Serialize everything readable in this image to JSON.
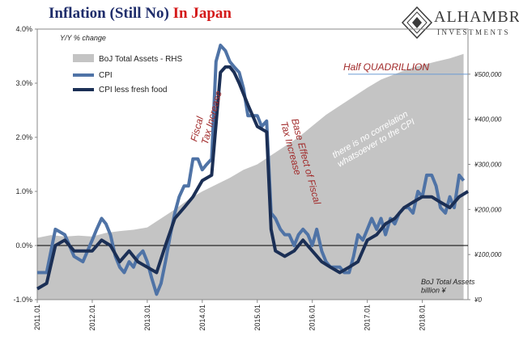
{
  "header": {
    "title_part1": "Inflation (Still No)",
    "title_part2": "In Japan",
    "brand_name": "ALHAMBRA",
    "brand_subtitle": "INVESTMENTS"
  },
  "chart_data": {
    "type": "line",
    "ylabel_left": "Y/Y % change",
    "ylabel_right": "BoJ Total Assets\nbillion ¥",
    "ylim_left": [
      -1.0,
      4.0
    ],
    "ylim_right": [
      0,
      600000
    ],
    "y_ticks_left": [
      "-1.0%",
      "0.0%",
      "1.0%",
      "2.0%",
      "3.0%",
      "4.0%"
    ],
    "y_ticks_right": [
      "¥0",
      "¥100,000",
      "¥200,000",
      "¥300,000",
      "¥400,000",
      "¥500,000"
    ],
    "x_ticks": [
      "2011.01",
      "2012.01",
      "2013.01",
      "2014.01",
      "2015.01",
      "2016.01",
      "2017.01",
      "2018.01"
    ],
    "legend": {
      "placement": "top-left",
      "items": [
        "BoJ Total Assets - RHS",
        "CPI",
        "CPI less fresh food"
      ]
    },
    "annotations": [
      "Half QUADRILLION",
      "Fiscal\nTax Increase",
      "Base Effect of Fiscal\nTax Increase",
      "there is no correlation\nwhatsoever to the CPI"
    ],
    "reference_line_rhs": 500000,
    "colors": {
      "assets": "#c4c4c4",
      "cpi": "#4f73a6",
      "core_cpi": "#1b2f55",
      "annotation_red": "#a12a2a",
      "reference_line": "#6a9bd3"
    },
    "series": [
      {
        "name": "BoJ Total Assets - RHS",
        "axis": "right",
        "x": [
          2011.0,
          2011.25,
          2011.5,
          2011.75,
          2012.0,
          2012.25,
          2012.5,
          2012.75,
          2013.0,
          2013.25,
          2013.5,
          2013.75,
          2014.0,
          2014.25,
          2014.5,
          2014.75,
          2015.0,
          2015.25,
          2015.5,
          2015.75,
          2016.0,
          2016.25,
          2016.5,
          2016.75,
          2017.0,
          2017.25,
          2017.5,
          2017.75,
          2018.0,
          2018.25,
          2018.5,
          2018.75
        ],
        "values": [
          137000,
          143000,
          140000,
          142000,
          140000,
          148000,
          152000,
          155000,
          160000,
          180000,
          200000,
          222000,
          240000,
          255000,
          270000,
          288000,
          300000,
          320000,
          340000,
          360000,
          385000,
          410000,
          430000,
          450000,
          470000,
          488000,
          500000,
          512000,
          520000,
          528000,
          535000,
          545000
        ]
      },
      {
        "name": "CPI",
        "axis": "left",
        "x": [
          2011.0,
          2011.17,
          2011.33,
          2011.5,
          2011.67,
          2011.83,
          2012.0,
          2012.08,
          2012.17,
          2012.25,
          2012.33,
          2012.42,
          2012.5,
          2012.58,
          2012.67,
          2012.75,
          2012.83,
          2012.92,
          2013.0,
          2013.08,
          2013.17,
          2013.25,
          2013.33,
          2013.42,
          2013.5,
          2013.58,
          2013.67,
          2013.75,
          2013.83,
          2013.92,
          2014.0,
          2014.08,
          2014.17,
          2014.25,
          2014.33,
          2014.42,
          2014.5,
          2014.58,
          2014.67,
          2014.75,
          2014.83,
          2014.92,
          2015.0,
          2015.08,
          2015.17,
          2015.25,
          2015.33,
          2015.42,
          2015.5,
          2015.58,
          2015.67,
          2015.75,
          2015.83,
          2015.92,
          2016.0,
          2016.08,
          2016.17,
          2016.25,
          2016.33,
          2016.42,
          2016.5,
          2016.58,
          2016.67,
          2016.75,
          2016.83,
          2016.92,
          2017.0,
          2017.08,
          2017.17,
          2017.25,
          2017.33,
          2017.42,
          2017.5,
          2017.58,
          2017.67,
          2017.75,
          2017.83,
          2017.92,
          2018.0,
          2018.08,
          2018.17,
          2018.25,
          2018.33,
          2018.42,
          2018.5,
          2018.58,
          2018.67,
          2018.75
        ],
        "values": [
          -0.5,
          -0.5,
          0.3,
          0.2,
          -0.2,
          -0.3,
          0.1,
          0.3,
          0.5,
          0.4,
          0.2,
          -0.2,
          -0.4,
          -0.5,
          -0.3,
          -0.4,
          -0.2,
          -0.1,
          -0.3,
          -0.6,
          -0.9,
          -0.7,
          -0.3,
          0.2,
          0.6,
          0.9,
          1.1,
          1.1,
          1.6,
          1.6,
          1.4,
          1.5,
          1.6,
          3.4,
          3.7,
          3.6,
          3.4,
          3.3,
          3.2,
          2.9,
          2.4,
          2.4,
          2.4,
          2.2,
          2.3,
          0.6,
          0.5,
          0.3,
          0.2,
          0.2,
          0.0,
          0.2,
          0.3,
          0.2,
          0.0,
          0.3,
          -0.1,
          -0.3,
          -0.4,
          -0.4,
          -0.4,
          -0.5,
          -0.5,
          -0.2,
          0.2,
          0.1,
          0.3,
          0.5,
          0.3,
          0.5,
          0.2,
          0.5,
          0.4,
          0.6,
          0.7,
          0.7,
          0.6,
          1.0,
          0.9,
          1.3,
          1.3,
          1.1,
          0.7,
          0.6,
          0.9,
          0.7,
          1.3,
          1.2
        ]
      },
      {
        "name": "CPI less fresh food",
        "axis": "left",
        "x": [
          2011.0,
          2011.17,
          2011.33,
          2011.5,
          2011.67,
          2011.83,
          2012.0,
          2012.17,
          2012.33,
          2012.5,
          2012.67,
          2012.83,
          2013.0,
          2013.17,
          2013.33,
          2013.5,
          2013.67,
          2013.83,
          2014.0,
          2014.17,
          2014.33,
          2014.42,
          2014.5,
          2014.58,
          2014.67,
          2014.83,
          2015.0,
          2015.17,
          2015.25,
          2015.33,
          2015.5,
          2015.67,
          2015.83,
          2016.0,
          2016.17,
          2016.33,
          2016.5,
          2016.67,
          2016.83,
          2017.0,
          2017.17,
          2017.33,
          2017.5,
          2017.67,
          2017.83,
          2018.0,
          2018.17,
          2018.33,
          2018.5,
          2018.67,
          2018.83
        ],
        "values": [
          -0.8,
          -0.7,
          0.0,
          0.1,
          -0.1,
          -0.1,
          -0.1,
          0.1,
          0.0,
          -0.3,
          -0.1,
          -0.3,
          -0.4,
          -0.5,
          0.0,
          0.5,
          0.7,
          0.9,
          1.2,
          1.3,
          3.2,
          3.3,
          3.3,
          3.2,
          3.0,
          2.6,
          2.2,
          2.1,
          0.3,
          -0.1,
          -0.2,
          -0.1,
          0.1,
          -0.1,
          -0.3,
          -0.4,
          -0.5,
          -0.4,
          -0.3,
          0.1,
          0.2,
          0.4,
          0.5,
          0.7,
          0.8,
          0.9,
          0.9,
          0.8,
          0.7,
          0.9,
          1.0
        ]
      }
    ]
  }
}
